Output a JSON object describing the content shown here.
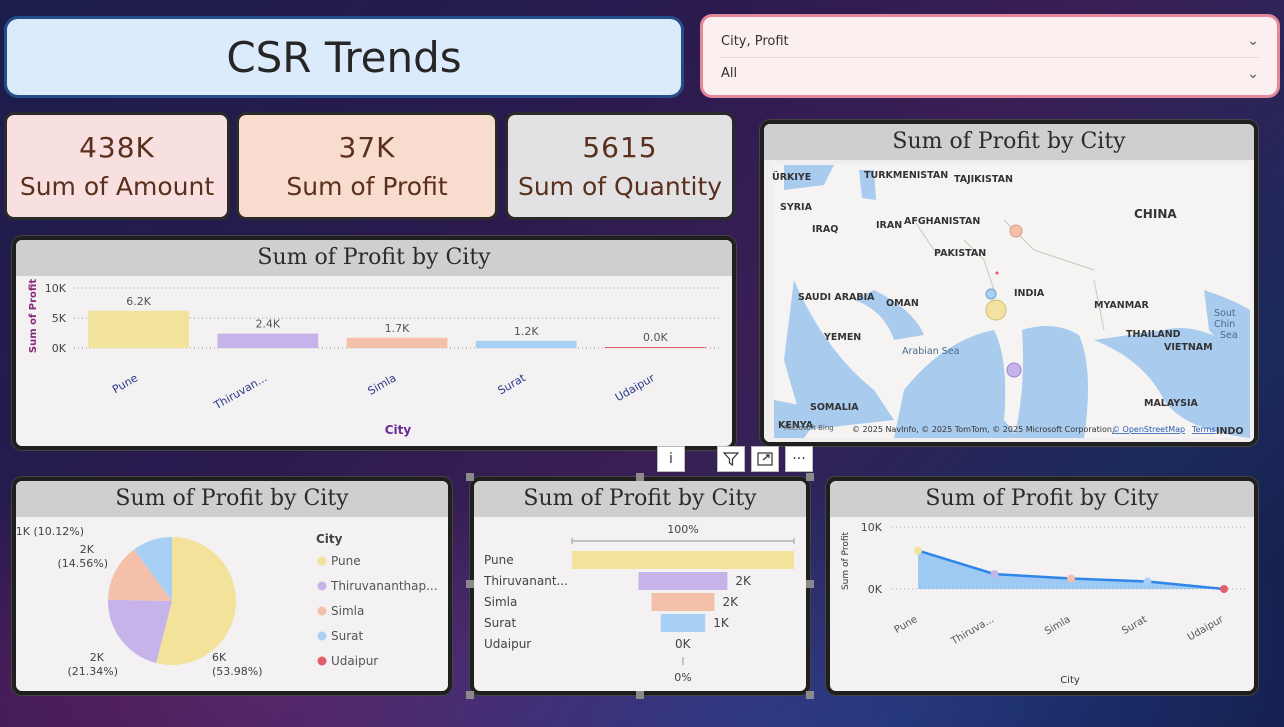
{
  "header": {
    "title": "CSR Trends"
  },
  "slicer": {
    "field_label": "City, Profit",
    "selected": "All"
  },
  "cards": [
    {
      "value": "438K",
      "label": "Sum of Amount"
    },
    {
      "value": "37K",
      "label": "Sum of Profit"
    },
    {
      "value": "5615",
      "label": "Sum of Quantity"
    }
  ],
  "visuals": {
    "bar_title": "Sum of Profit by City",
    "map_title": "Sum of Profit by City",
    "pie_title": "Sum of Profit by City",
    "funnel_title": "Sum of Profit by City",
    "area_title": "Sum of Profit by City"
  },
  "map": {
    "labels": [
      "ÜRKIYE",
      "TURKMENISTAN",
      "TAJIKISTAN",
      "SYRIA",
      "IRAQ",
      "IRAN",
      "AFGHANISTAN",
      "CHINA",
      "PAKISTAN",
      "INDIA",
      "SAUDI ARABIA",
      "OMAN",
      "MYANMAR",
      "THAILAND",
      "VIETNAM",
      "YEMEN",
      "Arabian Sea",
      "SOMALIA",
      "MALAYSIA",
      "KENYA",
      "INDO",
      "Sout",
      "Chin",
      "Sea"
    ],
    "attribution": "© 2025 NavInfo, © 2025 TomTom, © 2025 Microsoft Corporation,",
    "osm_link": "© OpenStreetMap",
    "terms_link": "Terms",
    "bing": "Microsoft Bing"
  },
  "toolbar": {
    "info": "i",
    "filter": "filter-icon",
    "focus": "focus-icon",
    "more": "···"
  },
  "chart_data": [
    {
      "type": "bar",
      "title": "Sum of Profit by City",
      "xlabel": "City",
      "ylabel": "Sum of Profit",
      "categories": [
        "Pune",
        "Thiruvan...",
        "Simla",
        "Surat",
        "Udaipur"
      ],
      "values": [
        6200,
        2400,
        1700,
        1200,
        0
      ],
      "data_labels": [
        "6.2K",
        "2.4K",
        "1.7K",
        "1.2K",
        "0.0K"
      ],
      "yticks": [
        "10K",
        "5K",
        "0K"
      ],
      "ylim": [
        0,
        10000
      ],
      "colors": [
        "#f2e29a",
        "#c6b3ea",
        "#f5c0aa",
        "#a8d0f5",
        "#e0606a"
      ]
    },
    {
      "type": "pie",
      "title": "Sum of Profit by City",
      "legend_title": "City",
      "legend": [
        "Pune",
        "Thiruvananthap...",
        "Simla",
        "Surat",
        "Udaipur"
      ],
      "values": [
        53.98,
        21.34,
        14.56,
        10.12,
        0
      ],
      "slice_labels": [
        {
          "value": "6K",
          "pct": "(53.98%)"
        },
        {
          "value": "2K",
          "pct": "(21.34%)"
        },
        {
          "value": "2K",
          "pct": "(14.56%)"
        },
        {
          "value": "1K (10.12%)",
          "pct": ""
        }
      ],
      "colors": [
        "#f2e29a",
        "#c6b3ea",
        "#f5c0aa",
        "#a8d0f5",
        "#e0606a"
      ]
    },
    {
      "type": "bar",
      "subtype": "funnel",
      "title": "Sum of Profit by City",
      "categories": [
        "Pune",
        "Thiruvanant...",
        "Simla",
        "Surat",
        "Udaipur"
      ],
      "values": [
        6000,
        2400,
        1700,
        1200,
        0
      ],
      "data_labels": [
        "",
        "2K",
        "2K",
        "1K",
        "0K"
      ],
      "top_pct": "100%",
      "bottom_pct": "0%",
      "colors": [
        "#f2e29a",
        "#c6b3ea",
        "#f5c0aa",
        "#a8d0f5",
        "#e0606a"
      ]
    },
    {
      "type": "area",
      "title": "Sum of Profit by City",
      "xlabel": "City",
      "ylabel": "Sum of Profit",
      "categories": [
        "Pune",
        "Thiruva...",
        "Simla",
        "Surat",
        "Udaipur"
      ],
      "values": [
        6200,
        2400,
        1700,
        1200,
        0
      ],
      "yticks": [
        "10K",
        "0K"
      ],
      "ylim": [
        0,
        10000
      ],
      "colors": [
        "#f2e29a",
        "#c6b3ea",
        "#f5c0aa",
        "#a8d0f5",
        "#e0606a"
      ]
    }
  ]
}
